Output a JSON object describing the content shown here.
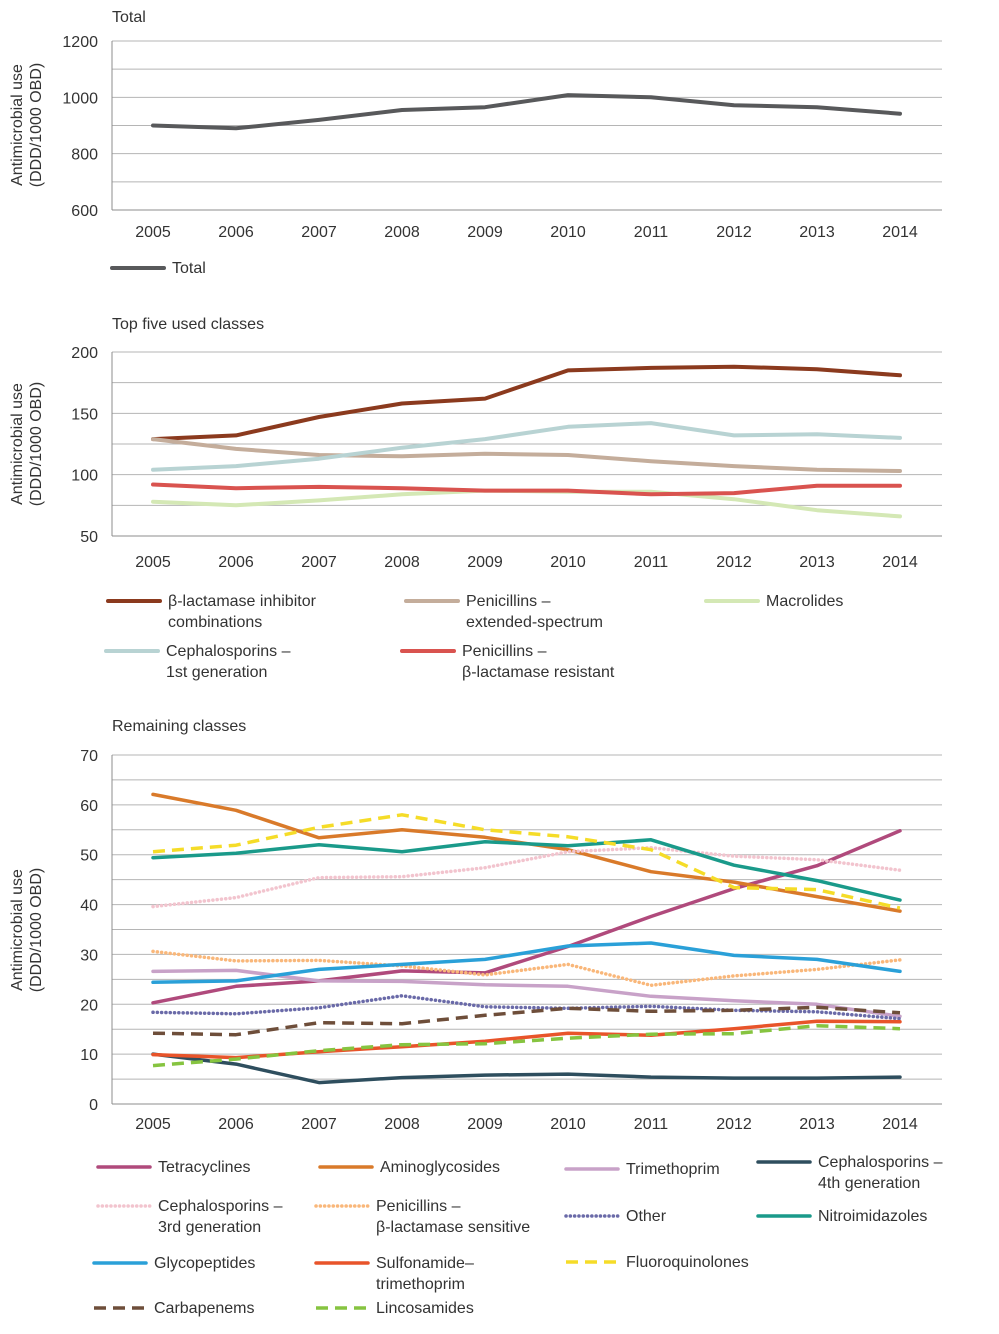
{
  "chart_data": [
    {
      "type": "line",
      "title": "Total",
      "ylabel": [
        "Antimicrobial use",
        "(DDD/1000 OBD)"
      ],
      "ylim": [
        600,
        1200
      ],
      "yticks": [
        600,
        800,
        1000,
        1200
      ],
      "grid": true,
      "legend_position": "bottom",
      "x": [
        "2005",
        "2006",
        "2007",
        "2008",
        "2009",
        "2010",
        "2011",
        "2012",
        "2013",
        "2014"
      ],
      "series": [
        {
          "name": "Total",
          "color": "#58595b",
          "dash": "solid",
          "values": [
            900,
            890,
            920,
            955,
            965,
            1008,
            1000,
            972,
            965,
            942
          ]
        }
      ],
      "legend": [
        {
          "label": [
            "Total"
          ],
          "series": 0
        }
      ]
    },
    {
      "type": "line",
      "title": "Top five used classes",
      "ylabel": [
        "Antimicrobial use",
        "(DDD/1000 OBD)"
      ],
      "ylim": [
        50,
        200
      ],
      "yticks": [
        50,
        100,
        150,
        200
      ],
      "grid": true,
      "legend_position": "bottom",
      "x": [
        "2005",
        "2006",
        "2007",
        "2008",
        "2009",
        "2010",
        "2011",
        "2012",
        "2013",
        "2014"
      ],
      "series": [
        {
          "name": "β-lactamase inhibitor combinations",
          "color": "#8b3a1e",
          "dash": "solid",
          "values": [
            129,
            132,
            147,
            158,
            162,
            185,
            187,
            188,
            186,
            181
          ]
        },
        {
          "name": "Penicillins – extended-spectrum",
          "color": "#c4ad9b",
          "dash": "solid",
          "values": [
            129,
            121,
            116,
            115,
            117,
            116,
            111,
            107,
            104,
            103
          ]
        },
        {
          "name": "Macrolides",
          "color": "#d4e8b5",
          "dash": "solid",
          "values": [
            78,
            75,
            79,
            84,
            87,
            86,
            86,
            80,
            71,
            66
          ]
        },
        {
          "name": "Cephalosporins – 1st generation",
          "color": "#b8d3d3",
          "dash": "solid",
          "values": [
            104,
            107,
            113,
            122,
            129,
            139,
            142,
            132,
            133,
            130
          ]
        },
        {
          "name": "Penicillins – β-lactamase resistant",
          "color": "#d9534f",
          "dash": "solid",
          "values": [
            92,
            89,
            90,
            89,
            87,
            87,
            84,
            85,
            91,
            91
          ]
        }
      ],
      "legend": [
        {
          "label": [
            "β-lactamase inhibitor",
            "combinations"
          ],
          "series": 0
        },
        {
          "label": [
            "Penicillins –",
            "extended-spectrum"
          ],
          "series": 1
        },
        {
          "label": [
            "Macrolides"
          ],
          "series": 2
        },
        {
          "label": [
            "Cephalosporins  –",
            "1st generation"
          ],
          "series": 3
        },
        {
          "label": [
            "Penicillins –",
            "β-lactamase resistant"
          ],
          "series": 4
        }
      ]
    },
    {
      "type": "line",
      "title": "Remaining classes",
      "ylabel": [
        "Antimicrobial use",
        "(DDD/1000 OBD)"
      ],
      "ylim": [
        0,
        70
      ],
      "yticks": [
        0,
        10,
        20,
        30,
        40,
        50,
        60,
        70
      ],
      "grid": true,
      "legend_position": "bottom",
      "x": [
        "2005",
        "2006",
        "2007",
        "2008",
        "2009",
        "2010",
        "2011",
        "2012",
        "2013",
        "2014"
      ],
      "series": [
        {
          "name": "Tetracyclines",
          "color": "#b04a7c",
          "dash": "solid",
          "values": [
            20.3,
            23.6,
            24.7,
            26.7,
            26.3,
            31.6,
            37.6,
            43.2,
            47.8,
            54.8
          ]
        },
        {
          "name": "Aminoglycosides",
          "color": "#d97a2a",
          "dash": "solid",
          "values": [
            62.1,
            58.9,
            53.4,
            55.0,
            53.5,
            51.0,
            46.6,
            44.5,
            41.6,
            38.7
          ]
        },
        {
          "name": "Trimethoprim",
          "color": "#c8a2c8",
          "dash": "solid",
          "values": [
            26.6,
            26.8,
            24.7,
            24.6,
            23.9,
            23.6,
            21.6,
            20.7,
            20.0,
            17.6
          ]
        },
        {
          "name": "Cephalosporins – 4th generation",
          "color": "#2e4e5e",
          "dash": "solid",
          "values": [
            10.0,
            8.0,
            4.3,
            5.3,
            5.8,
            6.0,
            5.4,
            5.2,
            5.2,
            5.4
          ]
        },
        {
          "name": "Cephalosporins – 3rd generation",
          "color": "#f2c4ce",
          "dash": "dotted",
          "values": [
            39.6,
            41.4,
            45.4,
            45.6,
            47.4,
            50.6,
            51.4,
            49.7,
            49.0,
            46.9
          ]
        },
        {
          "name": "Penicillins – β-lactamase sensitive",
          "color": "#f9b77a",
          "dash": "dotted",
          "values": [
            30.6,
            28.7,
            28.8,
            27.7,
            25.9,
            28.0,
            23.8,
            25.7,
            27.0,
            28.9
          ]
        },
        {
          "name": "Other",
          "color": "#6a6aa8",
          "dash": "dotted",
          "values": [
            18.4,
            18.1,
            19.3,
            21.7,
            19.5,
            19.2,
            19.6,
            18.8,
            18.5,
            17.1
          ]
        },
        {
          "name": "Nitroimidazoles",
          "color": "#1a9a8a",
          "dash": "solid",
          "values": [
            49.4,
            50.3,
            52.0,
            50.6,
            52.6,
            51.8,
            53.0,
            47.9,
            44.8,
            40.9
          ]
        },
        {
          "name": "Glycopeptides",
          "color": "#2aa0d8",
          "dash": "solid",
          "values": [
            24.4,
            24.7,
            27.0,
            28.0,
            29.0,
            31.7,
            32.3,
            29.8,
            29.0,
            26.6
          ]
        },
        {
          "name": "Sulfonamide–trimethoprim",
          "color": "#e8542a",
          "dash": "solid",
          "values": [
            9.9,
            9.3,
            10.5,
            11.5,
            12.6,
            14.2,
            13.8,
            15.1,
            16.6,
            16.5
          ]
        },
        {
          "name": "Fluoroquinolones",
          "color": "#f5dc28",
          "dash": "dashed",
          "values": [
            50.6,
            51.9,
            55.5,
            58.0,
            55.0,
            53.6,
            51.0,
            43.4,
            43.0,
            39.3
          ]
        },
        {
          "name": "Carbapenems",
          "color": "#6e4e3a",
          "dash": "dashed",
          "values": [
            14.2,
            13.9,
            16.3,
            16.1,
            17.8,
            19.2,
            18.6,
            18.8,
            19.4,
            18.3
          ]
        },
        {
          "name": "Lincosamides",
          "color": "#86c440",
          "dash": "dashed",
          "values": [
            7.7,
            9.0,
            10.7,
            11.9,
            12.1,
            13.2,
            14.0,
            14.1,
            15.7,
            15.1
          ]
        }
      ],
      "legend": [
        {
          "label": [
            "Tetracyclines"
          ],
          "series": 0
        },
        {
          "label": [
            "Aminoglycosides"
          ],
          "series": 1
        },
        {
          "label": [
            "Trimethoprim"
          ],
          "series": 2
        },
        {
          "label": [
            "Cephalosporins  –",
            "4th generation"
          ],
          "series": 3
        },
        {
          "label": [
            "Cephalosporins  –",
            "3rd generation"
          ],
          "series": 4
        },
        {
          "label": [
            "Penicillins –",
            "β-lactamase sensitive"
          ],
          "series": 5
        },
        {
          "label": [
            "Other"
          ],
          "series": 6
        },
        {
          "label": [
            "Nitroimidazoles"
          ],
          "series": 7
        },
        {
          "label": [
            "Glycopeptides"
          ],
          "series": 8
        },
        {
          "label": [
            "Sulfonamide–",
            "trimethoprim"
          ],
          "series": 9
        },
        {
          "label": [
            "Fluoroquinolones"
          ],
          "series": 10
        },
        {
          "label": [
            "Carbapenems"
          ],
          "series": 11
        },
        {
          "label": [
            "Lincosamides"
          ],
          "series": 12
        }
      ]
    }
  ]
}
